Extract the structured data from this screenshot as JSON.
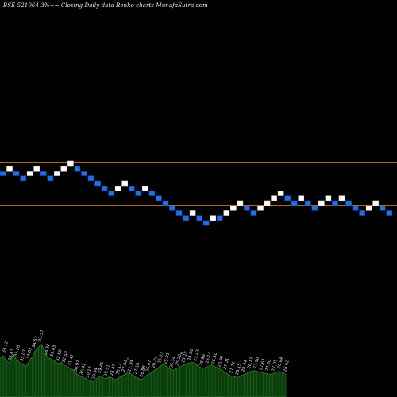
{
  "chart_data": {
    "type": "renko",
    "title": "BSE 521064  3%~~ Closing Daily data  Renko  charts MunafaSutra.com",
    "colors": {
      "background": "#000000",
      "up_brick": "#ffffff",
      "down_brick": "#1e6fe8",
      "reference_line": "#b06a1e",
      "volume_fill": "#0c3d0c",
      "volume_edge": "#2f8a2f",
      "volume_label": "#dddddd"
    },
    "reference_lines": [
      {
        "level": "upper"
      },
      {
        "level": "lower"
      }
    ],
    "bricks": [
      {
        "dir": "down",
        "level": 0
      },
      {
        "dir": "up",
        "level": 1
      },
      {
        "dir": "down",
        "level": 0
      },
      {
        "dir": "down",
        "level": -1
      },
      {
        "dir": "up",
        "level": 0
      },
      {
        "dir": "up",
        "level": 1
      },
      {
        "dir": "down",
        "level": 0
      },
      {
        "dir": "down",
        "level": -1
      },
      {
        "dir": "up",
        "level": 0
      },
      {
        "dir": "up",
        "level": 1
      },
      {
        "dir": "up",
        "level": 2
      },
      {
        "dir": "down",
        "level": 1
      },
      {
        "dir": "down",
        "level": 0
      },
      {
        "dir": "down",
        "level": -1
      },
      {
        "dir": "down",
        "level": -2
      },
      {
        "dir": "down",
        "level": -3
      },
      {
        "dir": "down",
        "level": -4
      },
      {
        "dir": "up",
        "level": -3
      },
      {
        "dir": "up",
        "level": -2
      },
      {
        "dir": "down",
        "level": -3
      },
      {
        "dir": "down",
        "level": -4
      },
      {
        "dir": "up",
        "level": -3
      },
      {
        "dir": "down",
        "level": -4
      },
      {
        "dir": "down",
        "level": -5
      },
      {
        "dir": "down",
        "level": -6
      },
      {
        "dir": "down",
        "level": -7
      },
      {
        "dir": "down",
        "level": -8
      },
      {
        "dir": "down",
        "level": -9
      },
      {
        "dir": "up",
        "level": -8
      },
      {
        "dir": "down",
        "level": -9
      },
      {
        "dir": "down",
        "level": -10
      },
      {
        "dir": "up",
        "level": -9
      },
      {
        "dir": "down",
        "level": -9
      },
      {
        "dir": "up",
        "level": -8
      },
      {
        "dir": "up",
        "level": -7
      },
      {
        "dir": "up",
        "level": -6
      },
      {
        "dir": "down",
        "level": -7
      },
      {
        "dir": "down",
        "level": -8
      },
      {
        "dir": "up",
        "level": -7
      },
      {
        "dir": "up",
        "level": -6
      },
      {
        "dir": "up",
        "level": -5
      },
      {
        "dir": "up",
        "level": -4
      },
      {
        "dir": "down",
        "level": -5
      },
      {
        "dir": "down",
        "level": -6
      },
      {
        "dir": "up",
        "level": -5
      },
      {
        "dir": "down",
        "level": -6
      },
      {
        "dir": "down",
        "level": -7
      },
      {
        "dir": "up",
        "level": -6
      },
      {
        "dir": "up",
        "level": -5
      },
      {
        "dir": "down",
        "level": -6
      },
      {
        "dir": "up",
        "level": -5
      },
      {
        "dir": "down",
        "level": -6
      },
      {
        "dir": "down",
        "level": -7
      },
      {
        "dir": "down",
        "level": -8
      },
      {
        "dir": "up",
        "level": -7
      },
      {
        "dir": "up",
        "level": -6
      },
      {
        "dir": "down",
        "level": -7
      },
      {
        "dir": "down",
        "level": -8
      }
    ],
    "volume": [
      52,
      55,
      48,
      45,
      58,
      50,
      46,
      44,
      40,
      47,
      53,
      62,
      66,
      70,
      58,
      52,
      50,
      48,
      44,
      46,
      42,
      40,
      38,
      35,
      30,
      28,
      26,
      24,
      22,
      20,
      24,
      28,
      26,
      24,
      27,
      25,
      23,
      26,
      28,
      30,
      33,
      30,
      27,
      25,
      23,
      26,
      30,
      32,
      35,
      38,
      41,
      44,
      40,
      37,
      35,
      38,
      40,
      42,
      44,
      45,
      46,
      44,
      40,
      38,
      39,
      41,
      43,
      40,
      38,
      36,
      33,
      30,
      28,
      27,
      26,
      28,
      30,
      32,
      34,
      35,
      34,
      33,
      32,
      31,
      30,
      31,
      33,
      34,
      32,
      30
    ],
    "volume_labels": [
      "34.12",
      "35.43",
      "35.26",
      "35.07",
      "34.82",
      "34.52",
      "33.57",
      "34.32",
      "33.83",
      "32.88",
      "32.50",
      "31.47",
      "30.92",
      "30.42",
      "30.13",
      "29.94",
      "29.41",
      "28.91",
      "28.47",
      "28.12",
      "27.84",
      "27.39",
      "27.10",
      "26.88",
      "26.47",
      "26.24",
      "26.03",
      "25.81",
      "25.54",
      "25.26",
      "25.12",
      "24.90",
      "25.43",
      "25.88",
      "26.14",
      "26.50",
      "26.90",
      "27.31",
      "27.72",
      "28.15",
      "28.44",
      "28.12",
      "27.90",
      "27.62",
      "27.30",
      "27.05",
      "26.84",
      "26.62"
    ],
    "volume_markers": [
      "a",
      "a"
    ]
  }
}
